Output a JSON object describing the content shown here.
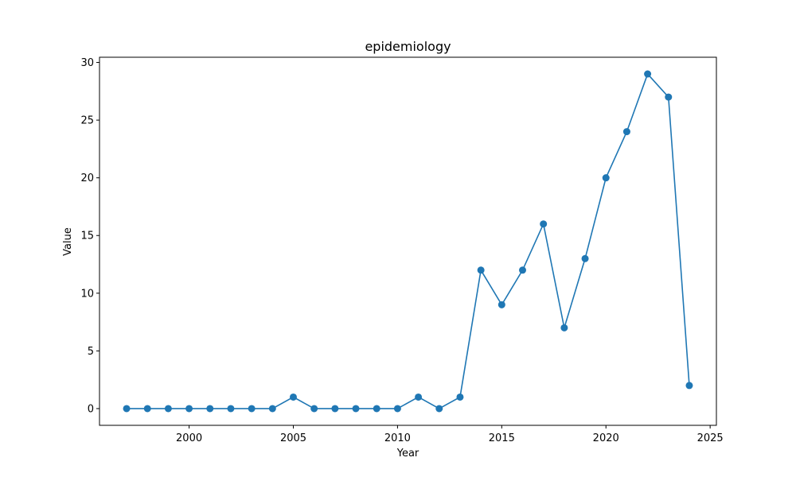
{
  "chart_data": {
    "type": "line",
    "title": "epidemiology",
    "xlabel": "Year",
    "ylabel": "Value",
    "xlim": [
      1995.7,
      2025.3
    ],
    "ylim": [
      -1.45,
      30.45
    ],
    "xticks": [
      2000,
      2005,
      2010,
      2015,
      2020,
      2025
    ],
    "yticks": [
      0,
      5,
      10,
      15,
      20,
      25,
      30
    ],
    "grid": false,
    "series": [
      {
        "color": "#1f77b4",
        "marker": "circle",
        "x": [
          1997,
          1998,
          1999,
          2000,
          2001,
          2002,
          2003,
          2004,
          2005,
          2006,
          2007,
          2008,
          2009,
          2010,
          2011,
          2012,
          2013,
          2014,
          2015,
          2016,
          2017,
          2018,
          2019,
          2020,
          2021,
          2022,
          2023,
          2024
        ],
        "y": [
          0,
          0,
          0,
          0,
          0,
          0,
          0,
          0,
          1,
          0,
          0,
          0,
          0,
          0,
          1,
          0,
          1,
          12,
          9,
          12,
          16,
          7,
          13,
          20,
          24,
          29,
          27,
          2
        ]
      }
    ]
  }
}
